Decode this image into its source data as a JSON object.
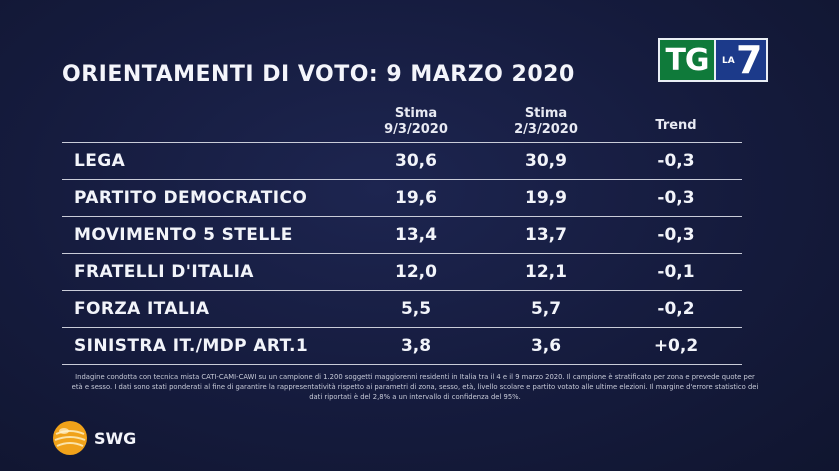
{
  "title": "ORIENTAMENTI DI VOTO: 9 MARZO 2020",
  "logo": {
    "tg": "TG",
    "la": "LA",
    "seven": "7"
  },
  "chart_data": {
    "type": "table",
    "columns": [
      {
        "line1": "Stima",
        "line2": "9/3/2020"
      },
      {
        "line1": "Stima",
        "line2": "2/3/2020"
      },
      {
        "line1": "Trend",
        "line2": ""
      }
    ],
    "rows": [
      {
        "party": "LEGA",
        "stima_9_3_2020": "30,6",
        "stima_2_3_2020": "30,9",
        "trend": "-0,3"
      },
      {
        "party": "PARTITO DEMOCRATICO",
        "stima_9_3_2020": "19,6",
        "stima_2_3_2020": "19,9",
        "trend": "-0,3"
      },
      {
        "party": "MOVIMENTO 5 STELLE",
        "stima_9_3_2020": "13,4",
        "stima_2_3_2020": "13,7",
        "trend": "-0,3"
      },
      {
        "party": "FRATELLI D'ITALIA",
        "stima_9_3_2020": "12,0",
        "stima_2_3_2020": "12,1",
        "trend": "-0,1"
      },
      {
        "party": "FORZA ITALIA",
        "stima_9_3_2020": "5,5",
        "stima_2_3_2020": "5,7",
        "trend": "-0,2"
      },
      {
        "party": "SINISTRA IT./MDP ART.1",
        "stima_9_3_2020": "3,8",
        "stima_2_3_2020": "3,6",
        "trend": "+0,2"
      }
    ]
  },
  "note": "Indagine condotta con tecnica mista CATI-CAMI-CAWI su un campione di 1.200 soggetti maggiorenni residenti in Italia tra il 4 e il 9 marzo 2020. Il campione è stratificato per zona e prevede quote per età e sesso. I dati sono stati ponderati al fine di garantire la rappresentatività rispetto ai parametri di zona, sesso, età, livello scolare e partito votato alle ultime elezioni. Il margine d'errore statistico dei dati riportati è del 2,8% a un intervallo di confidenza del 95%.",
  "source": "SWG",
  "colors": {
    "background": "#151b3d",
    "tg_green": "#0f7a3a",
    "la7_blue": "#1c3a8a",
    "swg_orange": "#f0a21a"
  }
}
